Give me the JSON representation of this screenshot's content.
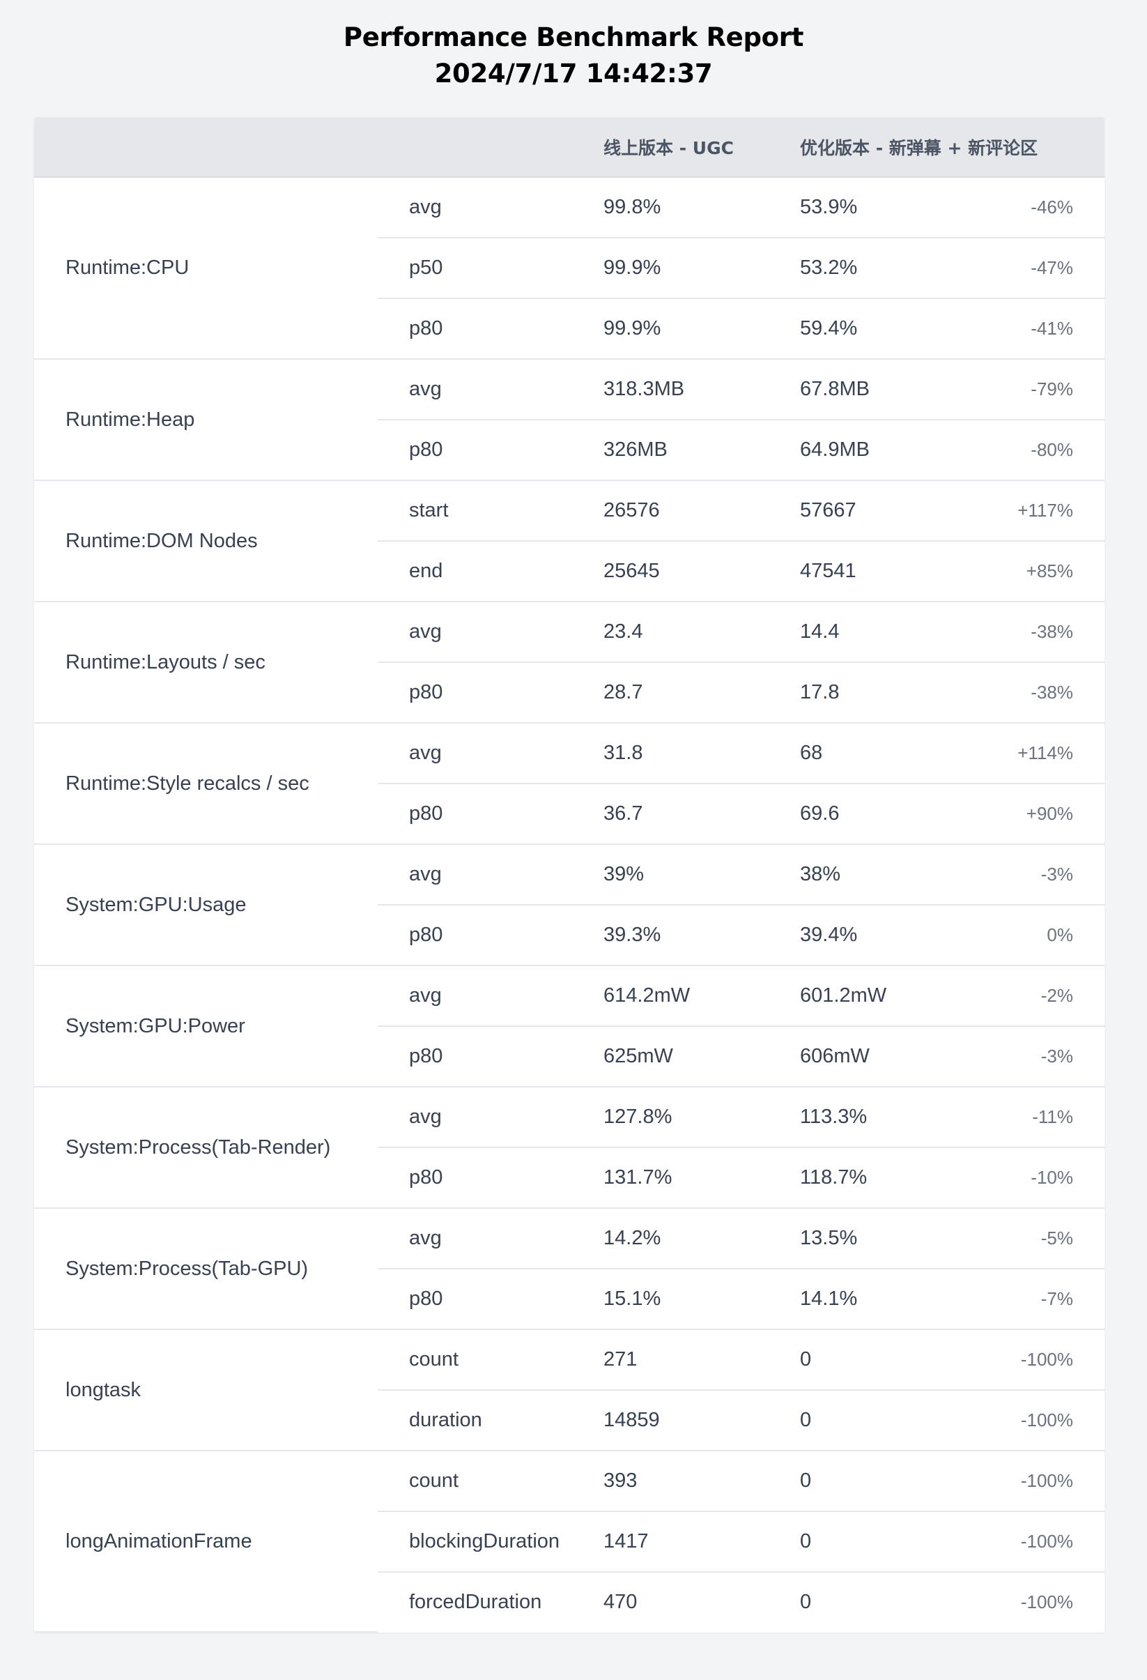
{
  "report": {
    "title": "Performance Benchmark Report",
    "timestamp": "2024/7/17 14:42:37"
  },
  "table": {
    "headers": {
      "metric": "",
      "stat": "",
      "baseline": "线上版本 - UGC",
      "optimized": "优化版本 - 新弹幕 + 新评论区"
    },
    "groups": [
      {
        "metric": "Runtime:CPU",
        "rows": [
          {
            "stat": "avg",
            "baseline": "99.8%",
            "optimized": "53.9%",
            "change": "-46%"
          },
          {
            "stat": "p50",
            "baseline": "99.9%",
            "optimized": "53.2%",
            "change": "-47%"
          },
          {
            "stat": "p80",
            "baseline": "99.9%",
            "optimized": "59.4%",
            "change": "-41%"
          }
        ]
      },
      {
        "metric": "Runtime:Heap",
        "rows": [
          {
            "stat": "avg",
            "baseline": "318.3MB",
            "optimized": "67.8MB",
            "change": "-79%"
          },
          {
            "stat": "p80",
            "baseline": "326MB",
            "optimized": "64.9MB",
            "change": "-80%"
          }
        ]
      },
      {
        "metric": "Runtime:DOM Nodes",
        "rows": [
          {
            "stat": "start",
            "baseline": "26576",
            "optimized": "57667",
            "change": "+117%"
          },
          {
            "stat": "end",
            "baseline": "25645",
            "optimized": "47541",
            "change": "+85%"
          }
        ]
      },
      {
        "metric": "Runtime:Layouts / sec",
        "rows": [
          {
            "stat": "avg",
            "baseline": "23.4",
            "optimized": "14.4",
            "change": "-38%"
          },
          {
            "stat": "p80",
            "baseline": "28.7",
            "optimized": "17.8",
            "change": "-38%"
          }
        ]
      },
      {
        "metric": "Runtime:Style recalcs / sec",
        "rows": [
          {
            "stat": "avg",
            "baseline": "31.8",
            "optimized": "68",
            "change": "+114%"
          },
          {
            "stat": "p80",
            "baseline": "36.7",
            "optimized": "69.6",
            "change": "+90%"
          }
        ]
      },
      {
        "metric": "System:GPU:Usage",
        "rows": [
          {
            "stat": "avg",
            "baseline": "39%",
            "optimized": "38%",
            "change": "-3%"
          },
          {
            "stat": "p80",
            "baseline": "39.3%",
            "optimized": "39.4%",
            "change": "0%"
          }
        ]
      },
      {
        "metric": "System:GPU:Power",
        "rows": [
          {
            "stat": "avg",
            "baseline": "614.2mW",
            "optimized": "601.2mW",
            "change": "-2%"
          },
          {
            "stat": "p80",
            "baseline": "625mW",
            "optimized": "606mW",
            "change": "-3%"
          }
        ]
      },
      {
        "metric": "System:Process(Tab-Render)",
        "rows": [
          {
            "stat": "avg",
            "baseline": "127.8%",
            "optimized": "113.3%",
            "change": "-11%"
          },
          {
            "stat": "p80",
            "baseline": "131.7%",
            "optimized": "118.7%",
            "change": "-10%"
          }
        ]
      },
      {
        "metric": "System:Process(Tab-GPU)",
        "rows": [
          {
            "stat": "avg",
            "baseline": "14.2%",
            "optimized": "13.5%",
            "change": "-5%"
          },
          {
            "stat": "p80",
            "baseline": "15.1%",
            "optimized": "14.1%",
            "change": "-7%"
          }
        ]
      },
      {
        "metric": "longtask",
        "rows": [
          {
            "stat": "count",
            "baseline": "271",
            "optimized": "0",
            "change": "-100%"
          },
          {
            "stat": "duration",
            "baseline": "14859",
            "optimized": "0",
            "change": "-100%"
          }
        ]
      },
      {
        "metric": "longAnimationFrame",
        "rows": [
          {
            "stat": "count",
            "baseline": "393",
            "optimized": "0",
            "change": "-100%"
          },
          {
            "stat": "blockingDuration",
            "baseline": "1417",
            "optimized": "0",
            "change": "-100%"
          },
          {
            "stat": "forcedDuration",
            "baseline": "470",
            "optimized": "0",
            "change": "-100%"
          }
        ]
      }
    ]
  }
}
